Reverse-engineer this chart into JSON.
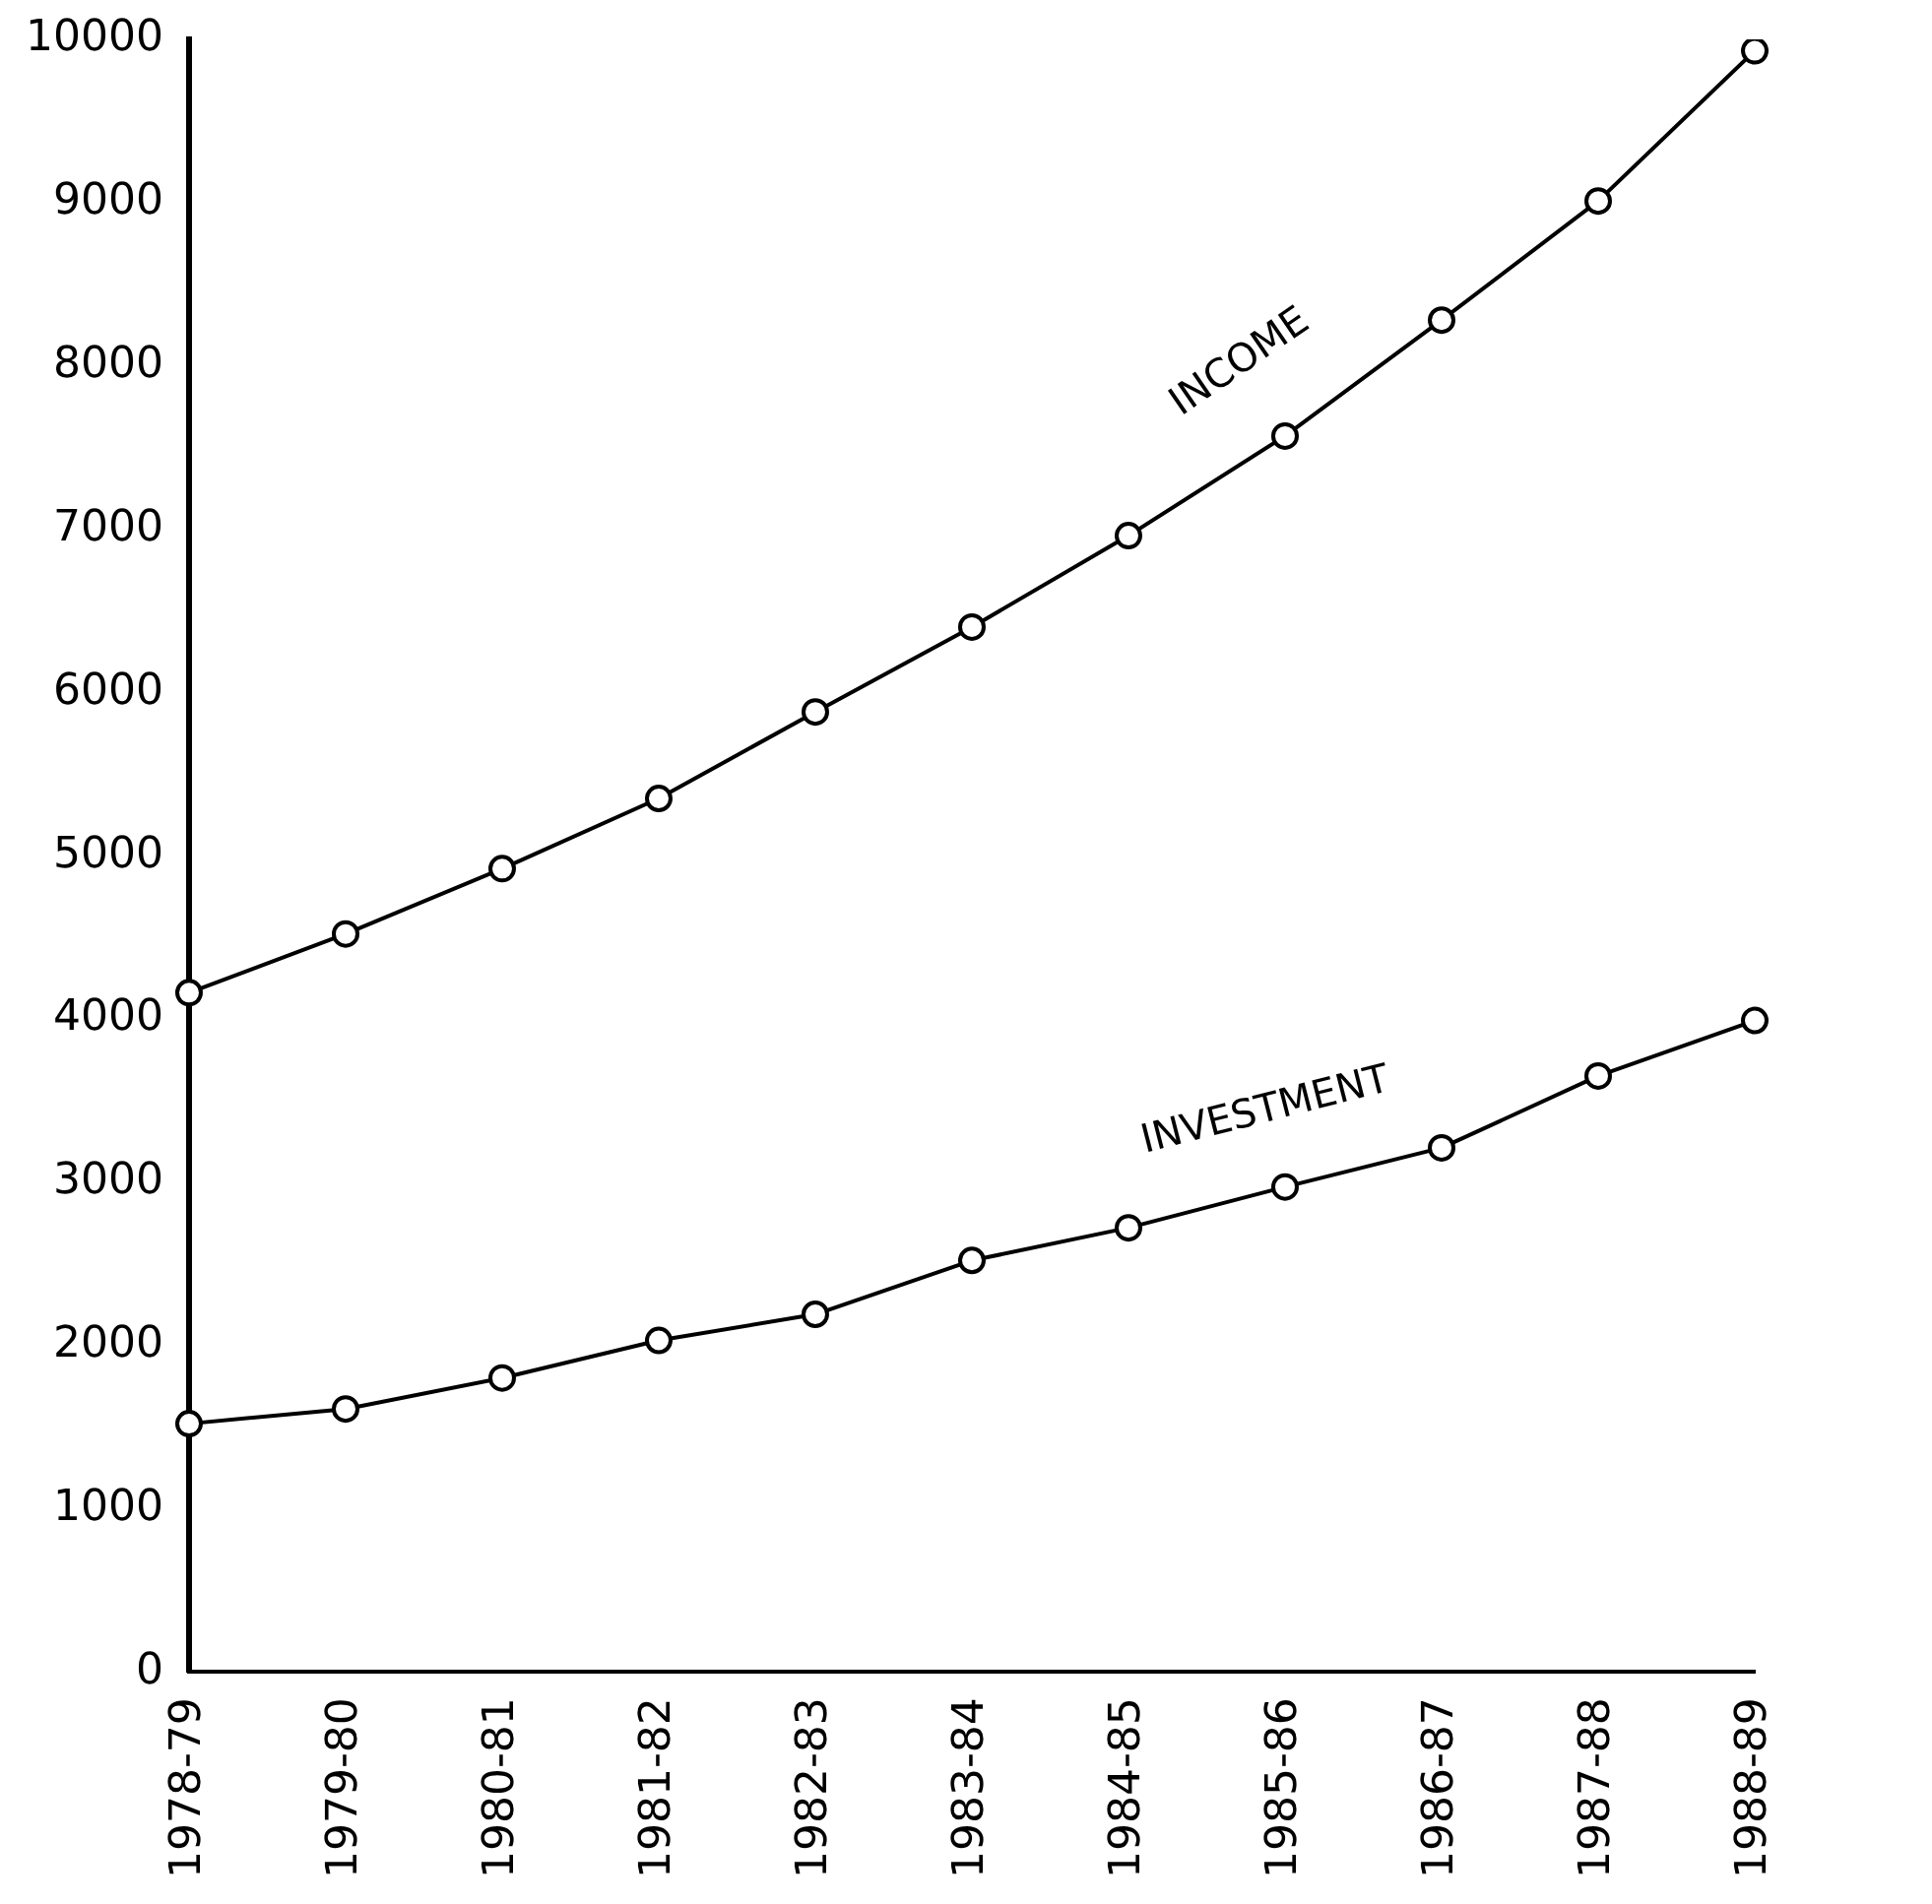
{
  "chart_data": {
    "type": "line",
    "categories": [
      "1978-79",
      "1979-80",
      "1980-81",
      "1981-82",
      "1982-83",
      "1983-84",
      "1984-85",
      "1985-86",
      "1986-87",
      "1987-88",
      "1988-89"
    ],
    "series": [
      {
        "name": "INCOME",
        "color": "#000000",
        "values": [
          4160,
          4520,
          4920,
          5350,
          5880,
          6400,
          6960,
          7570,
          8280,
          9010,
          9930
        ]
      },
      {
        "name": "INVESTMENT",
        "color": "#000000",
        "values": [
          1520,
          1610,
          1800,
          2030,
          2190,
          2520,
          2720,
          2970,
          3210,
          3650,
          3990
        ]
      }
    ],
    "ylim": [
      0,
      10000
    ],
    "yticks": [
      0,
      1000,
      2000,
      3000,
      4000,
      5000,
      6000,
      7000,
      8000,
      9000,
      10000
    ],
    "grid": false,
    "legend": false,
    "marker": "circle",
    "line_style": "solid"
  }
}
